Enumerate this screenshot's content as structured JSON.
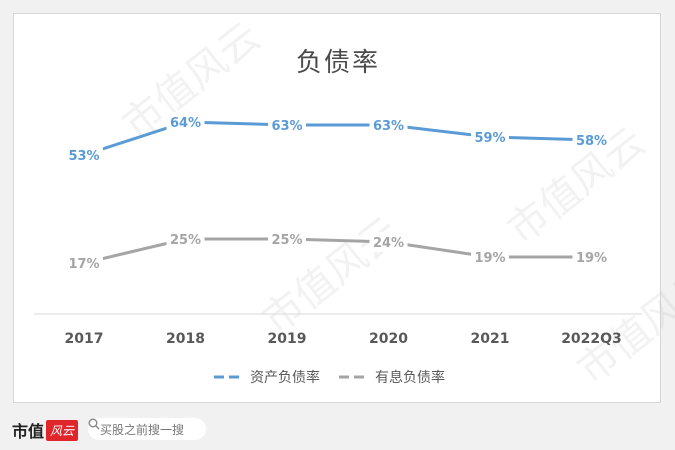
{
  "chart_data": {
    "type": "line",
    "title": "负债率",
    "categories": [
      "2017",
      "2018",
      "2019",
      "2020",
      "2021",
      "2022Q3"
    ],
    "series": [
      {
        "name": "资产负债率",
        "values": [
          53,
          64,
          63,
          63,
          59,
          58
        ],
        "labels": [
          "53%",
          "64%",
          "63%",
          "63%",
          "59%",
          "58%"
        ],
        "color": "#5b9bd5"
      },
      {
        "name": "有息负债率",
        "values": [
          17,
          25,
          25,
          24,
          19,
          19
        ],
        "labels": [
          "17%",
          "25%",
          "25%",
          "24%",
          "19%",
          "19%"
        ],
        "color": "#a5a5a5"
      }
    ],
    "ylim": [
      0,
      80
    ],
    "grid": false,
    "legend_position": "bottom"
  },
  "watermark_text": "市值风云",
  "footer": {
    "brand": "市值",
    "brand_badge": "风云",
    "search_placeholder": "买股之前搜一搜"
  }
}
